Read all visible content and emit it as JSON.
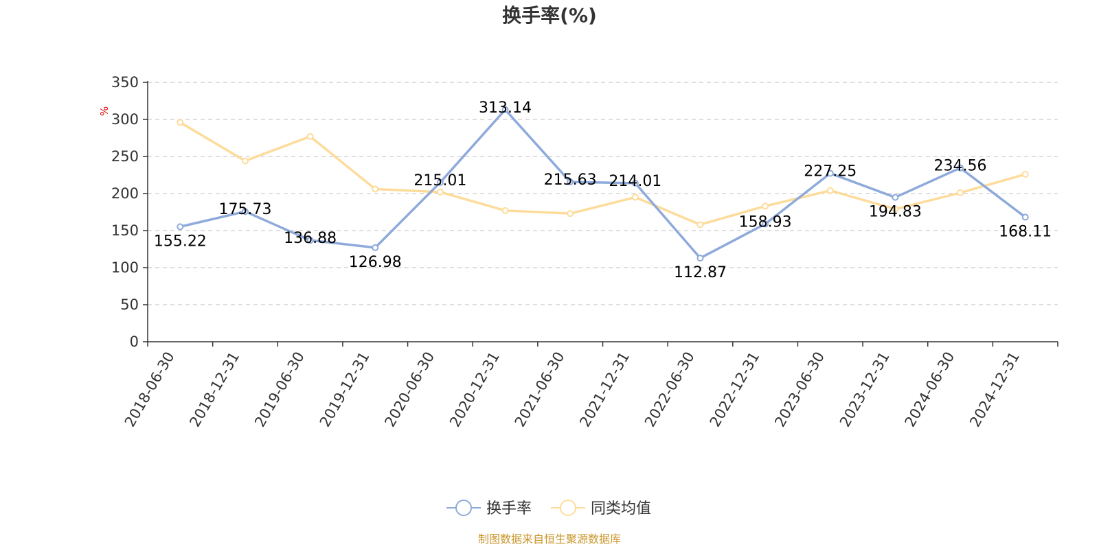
{
  "chart_data": {
    "type": "line",
    "title": "换手率(%)",
    "ylabel": "%",
    "ylim": [
      0,
      350
    ],
    "yticks": [
      "0",
      "50",
      "100",
      "150",
      "200",
      "250",
      "300",
      "350"
    ],
    "categories": [
      "2018-06-30",
      "2018-12-31",
      "2019-06-30",
      "2019-12-31",
      "2020-06-30",
      "2020-12-31",
      "2021-06-30",
      "2021-12-31",
      "2022-06-30",
      "2022-12-31",
      "2023-06-30",
      "2023-12-31",
      "2024-06-30",
      "2024-12-31"
    ],
    "series": [
      {
        "name": "换手率",
        "color": "#8eaadb",
        "values": [
          155.22,
          175.73,
          136.88,
          126.98,
          215.01,
          313.14,
          215.63,
          214.01,
          112.87,
          158.93,
          227.25,
          194.83,
          234.56,
          168.11
        ],
        "labels": [
          "155.22",
          "175.73",
          "136.88",
          "126.98",
          "215.01",
          "313.14",
          "215.63",
          "214.01",
          "112.87",
          "158.93",
          "227.25",
          "194.83",
          "234.56",
          "168.11"
        ]
      },
      {
        "name": "同类均值",
        "color": "#fddc9b",
        "values": [
          296,
          244,
          277,
          206,
          202,
          177,
          173,
          195,
          158,
          183,
          204,
          179,
          201,
          226
        ]
      }
    ],
    "grid": true,
    "legend_position": "bottom-center"
  },
  "source_text": "制图数据来自恒生聚源数据库"
}
